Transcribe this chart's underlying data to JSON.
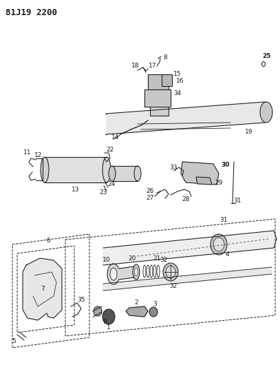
{
  "title": "81J19 2200",
  "bg_color": "#ffffff",
  "line_color": "#1a1a1a",
  "fig_width": 4.07,
  "fig_height": 5.33,
  "dpi": 100,
  "title_fontsize": 9,
  "title_fontweight": "bold",
  "label_fontsize": 6.5,
  "lw": 0.75
}
